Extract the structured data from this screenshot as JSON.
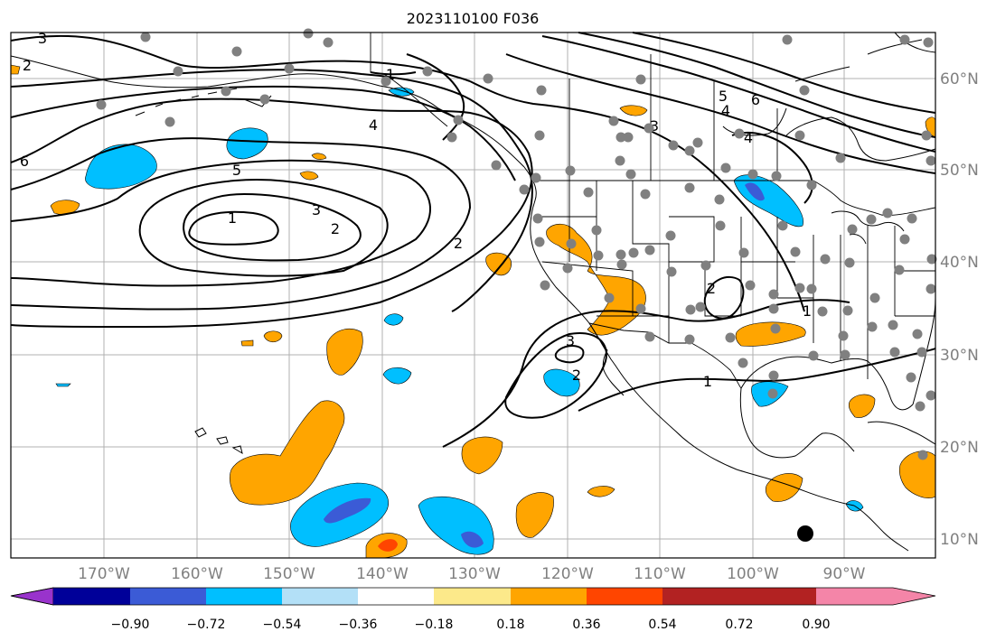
{
  "title": "2023110100 F036",
  "map": {
    "lon_labels": [
      "170°W",
      "160°W",
      "150°W",
      "140°W",
      "130°W",
      "120°W",
      "110°W",
      "100°W",
      "90°W"
    ],
    "lat_labels": [
      "60°N",
      "50°N",
      "40°N",
      "30°N",
      "20°N",
      "10°N"
    ],
    "contour_labels": [
      "1",
      "2",
      "3",
      "4",
      "5",
      "6"
    ],
    "colors": {
      "land_lines": "#000000",
      "grid": "#b0b0b0",
      "stations": "#808080",
      "contours": "#000000"
    }
  },
  "colorbar": {
    "colors": [
      "#9933cc",
      "#000099",
      "#3b5bd6",
      "#00bfff",
      "#b3e0f7",
      "#ffffff",
      "#fce98a",
      "#ffa500",
      "#ff4500",
      "#b22222",
      "#f485a8"
    ],
    "tick_labels": [
      "−0.90",
      "−0.72",
      "−0.54",
      "−0.36",
      "−0.18",
      "0.18",
      "0.36",
      "0.54",
      "0.72",
      "0.90"
    ]
  }
}
